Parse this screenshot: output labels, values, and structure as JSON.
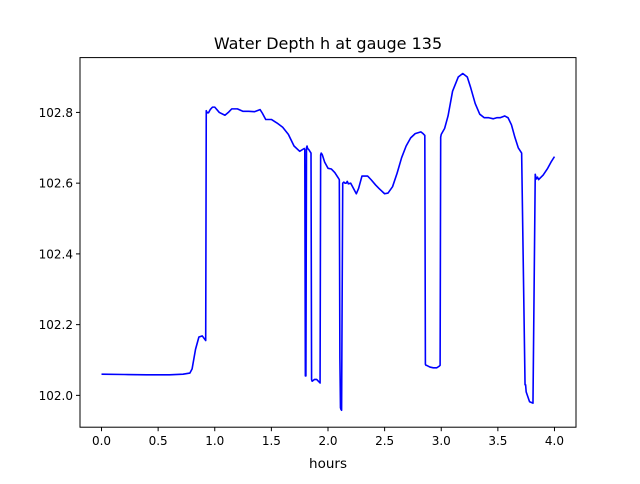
{
  "chart_data": {
    "type": "line",
    "title": "Water Depth h at gauge 135",
    "xlabel": "hours",
    "ylabel": "",
    "xlim": [
      -0.19,
      4.19
    ],
    "ylim": [
      101.91,
      102.955
    ],
    "xticks": [
      0.0,
      0.5,
      1.0,
      1.5,
      2.0,
      2.5,
      3.0,
      3.5,
      4.0
    ],
    "xtick_labels": [
      "0.0",
      "0.5",
      "1.0",
      "1.5",
      "2.0",
      "2.5",
      "3.0",
      "3.5",
      "4.0"
    ],
    "yticks": [
      102.0,
      102.2,
      102.4,
      102.6,
      102.8
    ],
    "ytick_labels": [
      "102.0",
      "102.2",
      "102.4",
      "102.6",
      "102.8"
    ],
    "grid": false,
    "series": [
      {
        "color": "#0000ff",
        "x": [
          0.0,
          0.2,
          0.4,
          0.6,
          0.72,
          0.78,
          0.8,
          0.83,
          0.86,
          0.89,
          0.92,
          0.925,
          0.93,
          0.935,
          0.945,
          0.96,
          0.98,
          1.0,
          1.04,
          1.09,
          1.12,
          1.15,
          1.2,
          1.25,
          1.3,
          1.35,
          1.4,
          1.42,
          1.45,
          1.5,
          1.55,
          1.6,
          1.65,
          1.7,
          1.75,
          1.79,
          1.795,
          1.8,
          1.805,
          1.81,
          1.815,
          1.82,
          1.83,
          1.85,
          1.855,
          1.86,
          1.88,
          1.9,
          1.93,
          1.935,
          1.94,
          1.95,
          1.97,
          2.0,
          2.03,
          2.06,
          2.09,
          2.1,
          2.105,
          2.11,
          2.115,
          2.12,
          2.13,
          2.14,
          2.15,
          2.16,
          2.17,
          2.18,
          2.2,
          2.25,
          2.27,
          2.3,
          2.35,
          2.38,
          2.42,
          2.45,
          2.5,
          2.53,
          2.57,
          2.61,
          2.65,
          2.69,
          2.73,
          2.77,
          2.82,
          2.84,
          2.855,
          2.86,
          2.865,
          2.87,
          2.9,
          2.93,
          2.96,
          2.98,
          2.99,
          2.995,
          3.0,
          3.03,
          3.06,
          3.1,
          3.15,
          3.19,
          3.23,
          3.26,
          3.3,
          3.34,
          3.38,
          3.42,
          3.46,
          3.49,
          3.52,
          3.56,
          3.59,
          3.62,
          3.65,
          3.68,
          3.71,
          3.74,
          3.745,
          3.75,
          3.78,
          3.81,
          3.83,
          3.835,
          3.84,
          3.85,
          3.86,
          3.9,
          3.94,
          3.97,
          4.0
        ],
        "y": [
          102.06,
          102.059,
          102.058,
          102.058,
          102.06,
          102.063,
          102.075,
          102.13,
          102.165,
          102.168,
          102.155,
          102.805,
          102.798,
          102.8,
          102.799,
          102.808,
          102.815,
          102.815,
          102.8,
          102.792,
          102.8,
          102.81,
          102.81,
          102.803,
          102.803,
          102.802,
          102.808,
          102.798,
          102.78,
          102.78,
          102.77,
          102.758,
          102.738,
          102.705,
          102.69,
          102.698,
          102.695,
          102.055,
          102.055,
          102.7,
          102.705,
          102.698,
          102.695,
          102.685,
          102.045,
          102.04,
          102.045,
          102.045,
          102.035,
          102.68,
          102.685,
          102.68,
          102.66,
          102.642,
          102.64,
          102.63,
          102.615,
          102.61,
          102.105,
          101.965,
          101.96,
          101.958,
          102.6,
          102.603,
          102.6,
          102.6,
          102.605,
          102.598,
          102.6,
          102.57,
          102.585,
          102.62,
          102.62,
          102.61,
          102.595,
          102.585,
          102.57,
          102.572,
          102.59,
          102.628,
          102.672,
          102.705,
          102.728,
          102.74,
          102.745,
          102.74,
          102.735,
          102.088,
          102.085,
          102.085,
          102.08,
          102.078,
          102.078,
          102.082,
          102.085,
          102.73,
          102.738,
          102.755,
          102.79,
          102.86,
          102.9,
          102.91,
          102.9,
          102.87,
          102.825,
          102.795,
          102.785,
          102.785,
          102.782,
          102.785,
          102.785,
          102.79,
          102.785,
          102.765,
          102.73,
          102.7,
          102.685,
          102.03,
          102.03,
          102.01,
          101.982,
          101.978,
          102.625,
          102.618,
          102.612,
          102.617,
          102.61,
          102.623,
          102.642,
          102.66,
          102.675
        ]
      }
    ]
  }
}
